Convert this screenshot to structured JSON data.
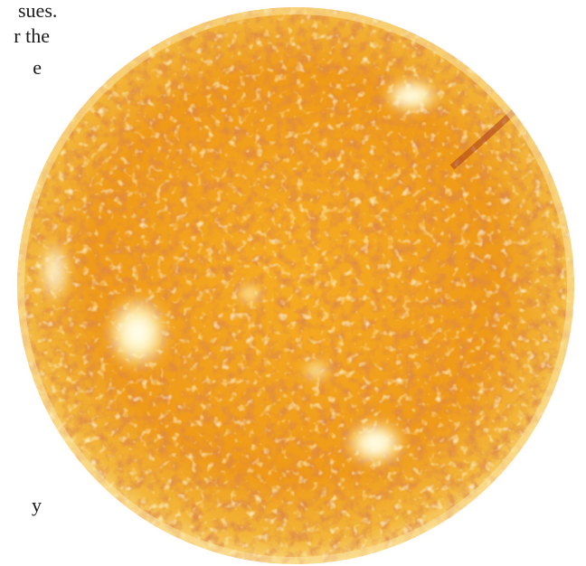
{
  "page_text": {
    "fragments": [
      "sues.",
      "r the",
      "e",
      "y"
    ]
  },
  "image": {
    "subject_icon": "sun-photo",
    "colors": {
      "disk": "#f2a21a",
      "bright": "#fff6c4",
      "dark": "#b8431a",
      "halo": "#fdebc6"
    }
  }
}
